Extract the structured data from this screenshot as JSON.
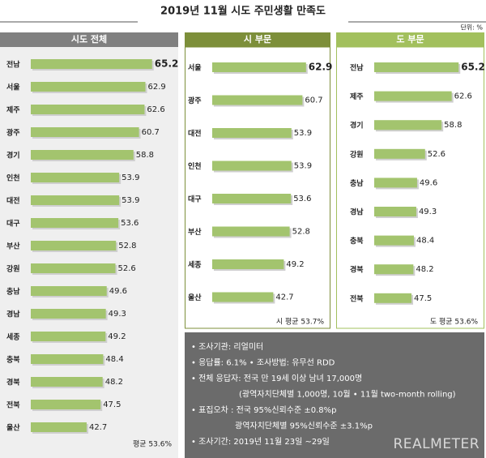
{
  "title": "2019년 11월 시도 주민생활 만족도",
  "unit": "단위: %",
  "chart_data": [
    {
      "type": "bar",
      "orientation": "horizontal",
      "title": "시도 전체",
      "header_color": "#808080",
      "color": "#a3c46e",
      "categories": [
        "전남",
        "서울",
        "제주",
        "광주",
        "경기",
        "인천",
        "대전",
        "대구",
        "부산",
        "강원",
        "충남",
        "경남",
        "세종",
        "충북",
        "경북",
        "전북",
        "울산"
      ],
      "values": [
        65.2,
        62.9,
        62.6,
        60.7,
        58.8,
        53.9,
        53.9,
        53.6,
        52.8,
        52.6,
        49.6,
        49.3,
        49.2,
        48.4,
        48.2,
        47.5,
        42.7
      ],
      "xlim": [
        23.5,
        70
      ],
      "footnote": "평균 53.6%"
    },
    {
      "type": "bar",
      "orientation": "horizontal",
      "title": "시 부문",
      "header_color": "#7d8f3a",
      "color": "#a3c46e",
      "categories": [
        "서울",
        "광주",
        "대전",
        "인천",
        "대구",
        "부산",
        "세종",
        "울산"
      ],
      "values": [
        62.9,
        60.7,
        53.9,
        53.9,
        53.6,
        52.8,
        49.2,
        42.7
      ],
      "xlim": [
        5,
        70
      ],
      "footnote": "시 평균 53.7%"
    },
    {
      "type": "bar",
      "orientation": "horizontal",
      "title": "도 부문",
      "header_color": "#a2c05d",
      "color": "#a3c46e",
      "categories": [
        "전남",
        "제주",
        "경기",
        "강원",
        "충남",
        "경남",
        "충북",
        "경북",
        "전북"
      ],
      "values": [
        65.2,
        62.6,
        58.8,
        52.6,
        49.6,
        49.3,
        48.4,
        48.2,
        47.5
      ],
      "xlim": [
        33.5,
        70
      ],
      "footnote": "도 평균 53.6%"
    }
  ],
  "notes": [
    "• 조사기관: 리얼미터",
    "• 응답률: 6.1% • 조사방법: 유무선 RDD",
    "• 전체 응답자: 전국 만 19세 이상 남녀 17,000명",
    "(광역자치단체별 1,000명, 10월 • 11월 two-month rolling)",
    "• 표집오차 : 전국 95%신뢰수준 ±0.8%p",
    "광역자치단체별 95%신뢰수준 ±3.1%p",
    "• 조사기간: 2019년 11월 23일 ~29일"
  ],
  "logo": "REALMETER"
}
